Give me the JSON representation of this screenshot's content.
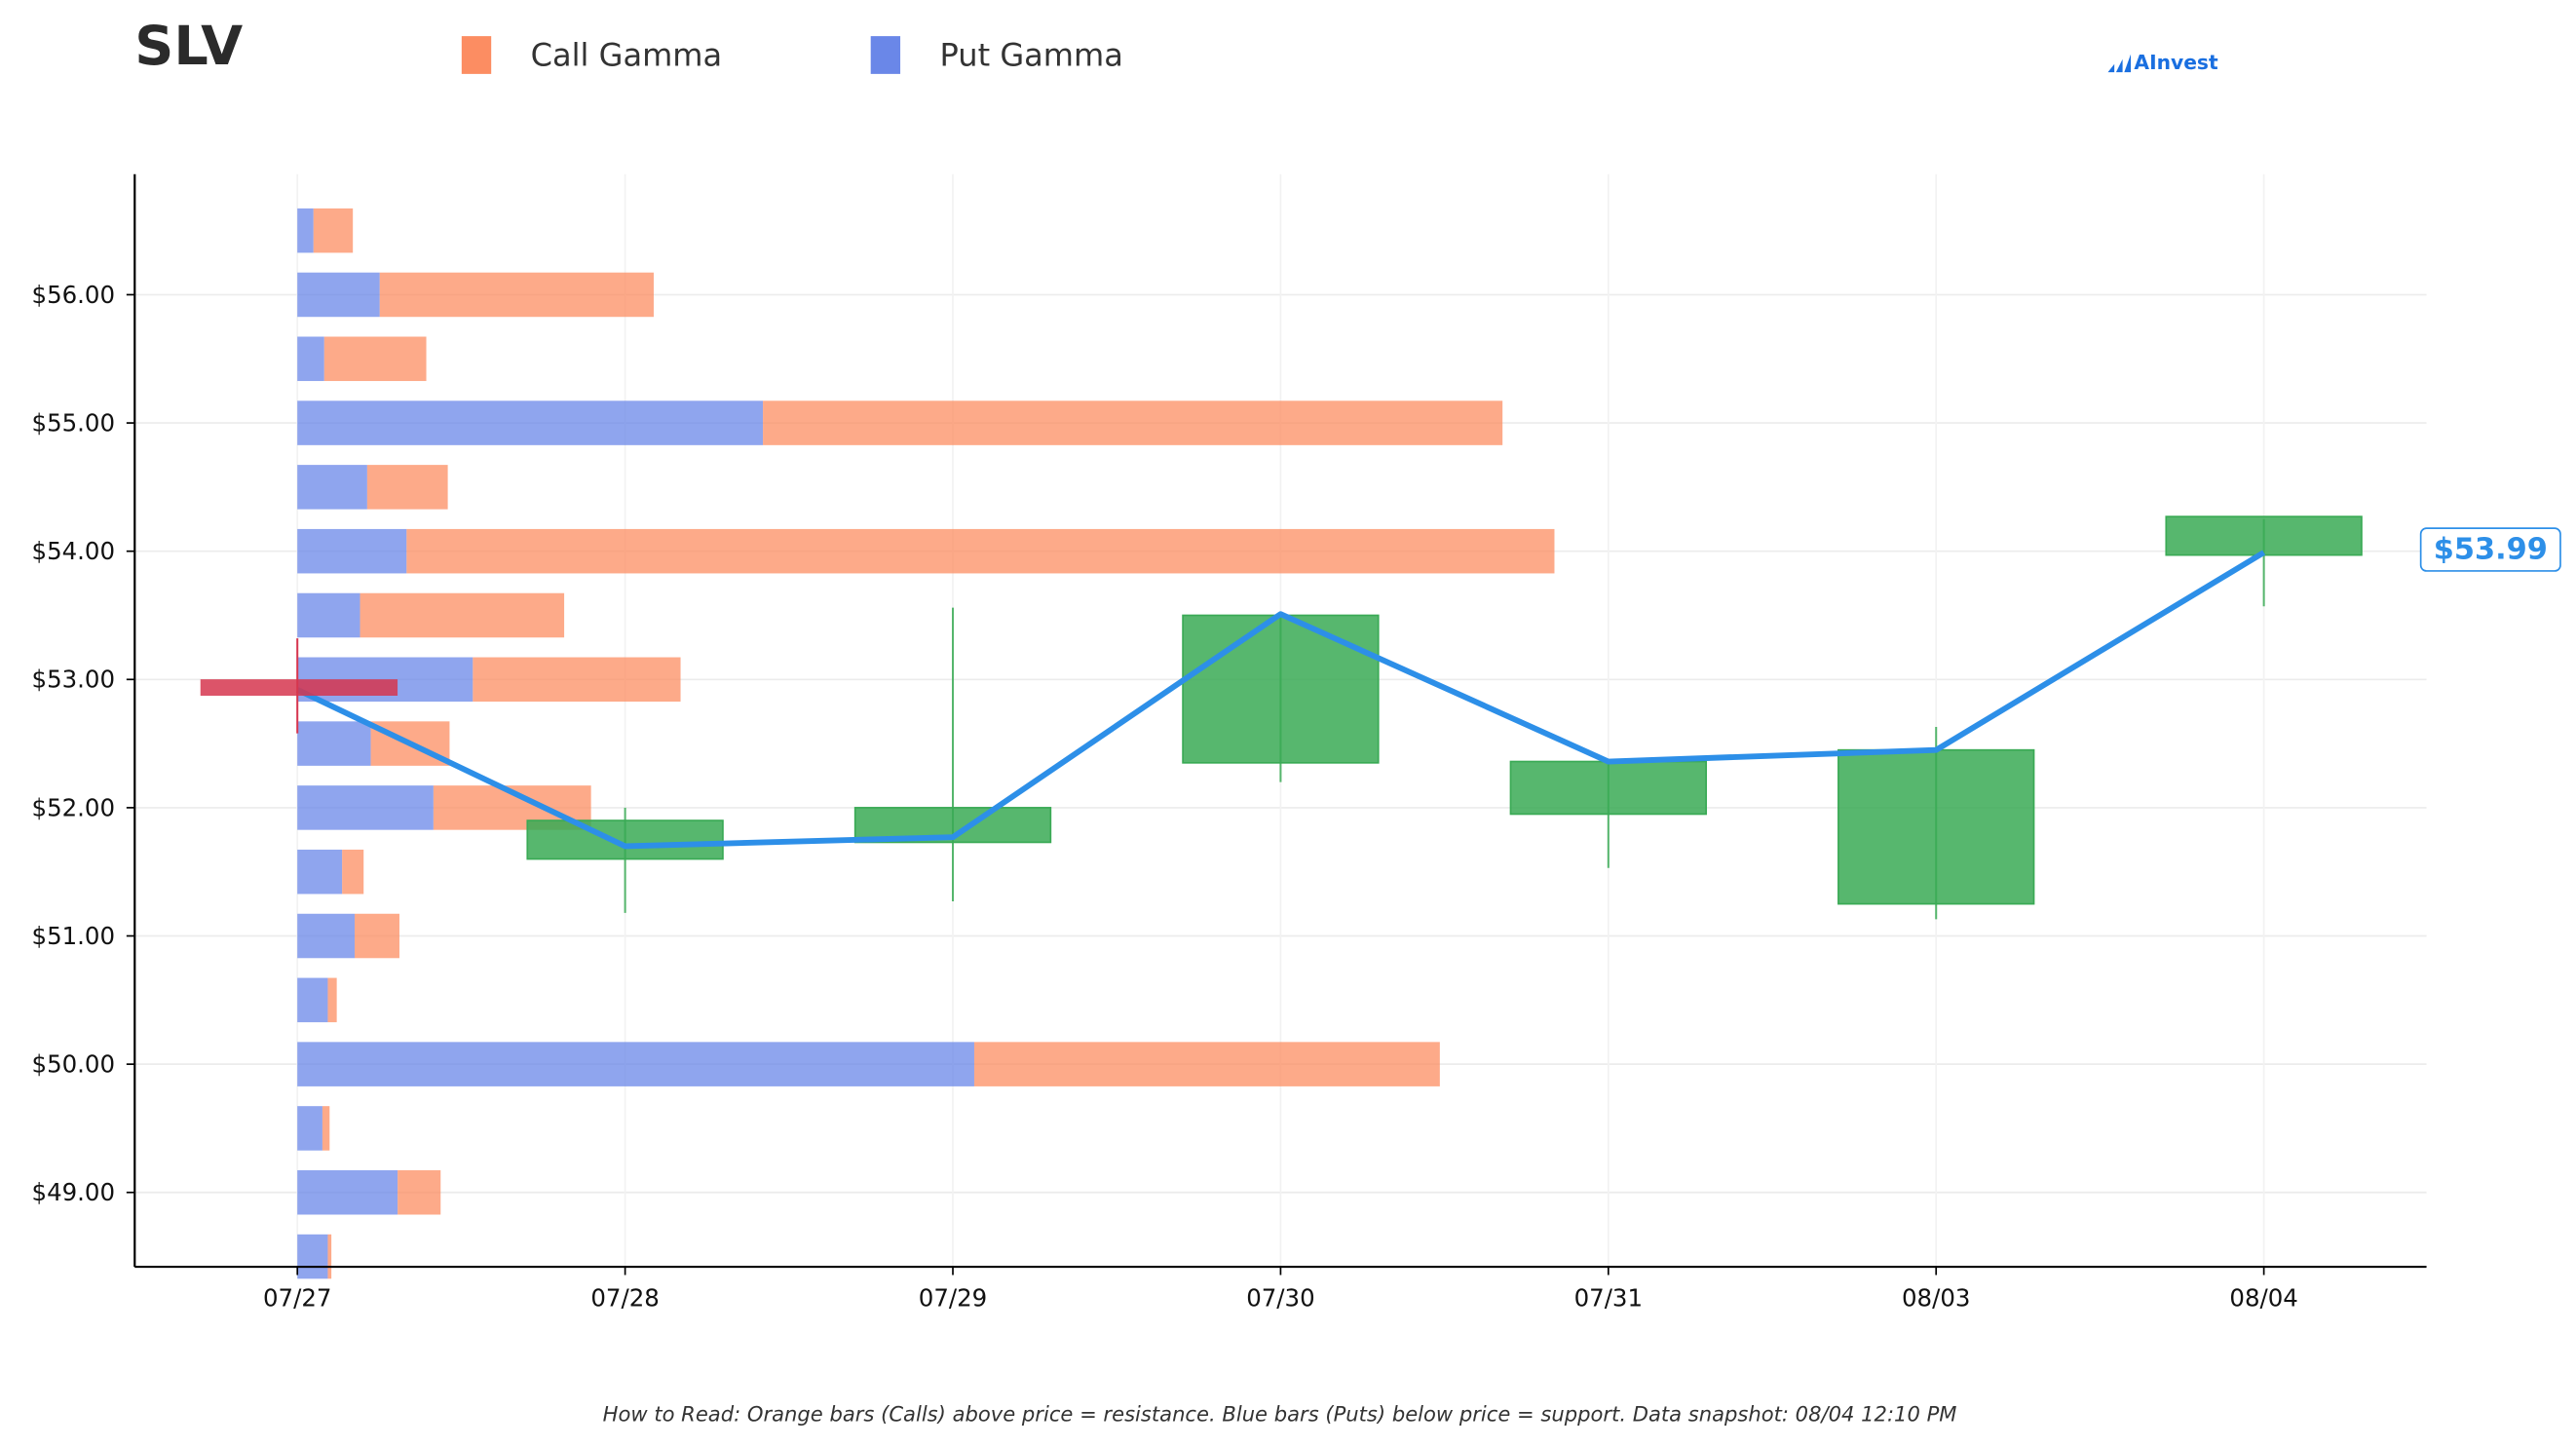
{
  "ticker": "SLV",
  "brand": "AInvest",
  "legend": {
    "call_label": "Call Gamma",
    "put_label": "Put Gamma"
  },
  "colors": {
    "call": "#fc8d62",
    "put": "#6a87e8",
    "candle": "#3aaa55",
    "price_line": "#2d8fe8",
    "current_marker": "#d6364f"
  },
  "footnote": "How to Read: Orange bars (Calls) above price = resistance. Blue bars (Puts) below price = support. Data snapshot: 08/04 12:10 PM",
  "price_tag": "$53.99",
  "chart_data": [
    {
      "type": "bar",
      "orientation": "horizontal",
      "stacked": true,
      "strikes": [
        56.5,
        56.0,
        55.5,
        55.0,
        54.5,
        54.0,
        53.5,
        53.0,
        52.5,
        52.0,
        51.5,
        51.0,
        50.5,
        50.0,
        49.5,
        49.0,
        48.5
      ],
      "series": [
        {
          "name": "Put Gamma",
          "values": [
            0.9,
            4.6,
            1.5,
            26.0,
            3.9,
            6.1,
            3.5,
            9.8,
            4.1,
            7.6,
            2.5,
            3.2,
            1.7,
            37.8,
            1.4,
            5.6,
            1.7
          ]
        },
        {
          "name": "Call Gamma",
          "values": [
            2.2,
            15.3,
            5.7,
            41.3,
            4.5,
            64.1,
            11.4,
            11.6,
            4.4,
            8.8,
            1.2,
            2.5,
            0.5,
            26.0,
            0.4,
            2.4,
            0.2
          ]
        }
      ],
      "xlim": [
        0,
        100
      ]
    },
    {
      "type": "candlestick",
      "categories": [
        "07/27",
        "07/28",
        "07/29",
        "07/30",
        "07/31",
        "08/03",
        "08/04"
      ],
      "ohlc": [
        {
          "date": "07/27",
          "open": 52.95,
          "high": 53.32,
          "low": 52.58,
          "close": 52.92
        },
        {
          "date": "07/28",
          "open": 51.6,
          "high": 52.0,
          "low": 51.18,
          "close": 51.9
        },
        {
          "date": "07/29",
          "open": 51.73,
          "high": 53.56,
          "low": 51.27,
          "close": 52.0
        },
        {
          "date": "07/30",
          "open": 52.35,
          "high": 53.52,
          "low": 52.2,
          "close": 53.5
        },
        {
          "date": "07/31",
          "open": 51.95,
          "high": 52.36,
          "low": 51.53,
          "close": 52.36
        },
        {
          "date": "08/03",
          "open": 51.25,
          "high": 52.63,
          "low": 51.13,
          "close": 52.45
        },
        {
          "date": "08/04",
          "open": 53.97,
          "high": 54.25,
          "low": 53.57,
          "close": 54.27
        }
      ],
      "line": [
        52.92,
        51.7,
        51.77,
        53.51,
        52.36,
        52.45,
        53.99
      ],
      "ytick_labels": [
        "$49.00",
        "$50.00",
        "$51.00",
        "$52.00",
        "$53.00",
        "$54.00",
        "$55.00",
        "$56.00"
      ],
      "yticks": [
        49,
        50,
        51,
        52,
        53,
        54,
        55,
        56
      ],
      "ylim": [
        48.42,
        56.94
      ],
      "grid": true,
      "legend_position": "top"
    }
  ]
}
